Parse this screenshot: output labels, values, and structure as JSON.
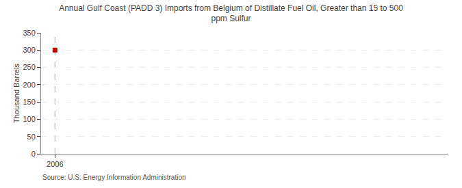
{
  "chart_data": {
    "type": "scatter",
    "title": "Annual Gulf Coast (PADD 3) Imports from Belgium of Distillate Fuel Oil, Greater than 15 to 500\nppm Sulfur",
    "ylabel": "Thousand Barrels",
    "annotations": [
      "Source: U.S. Energy Information Administration"
    ],
    "x": [
      2006
    ],
    "values": [
      300
    ],
    "color": "#cc0000",
    "marker": "square",
    "xlim": [
      2005.4,
      2023
    ],
    "xticks": [
      2006
    ],
    "ylim": [
      0,
      350
    ],
    "yticks": [
      0,
      50,
      100,
      150,
      200,
      250,
      300,
      350
    ],
    "grid": "y"
  }
}
